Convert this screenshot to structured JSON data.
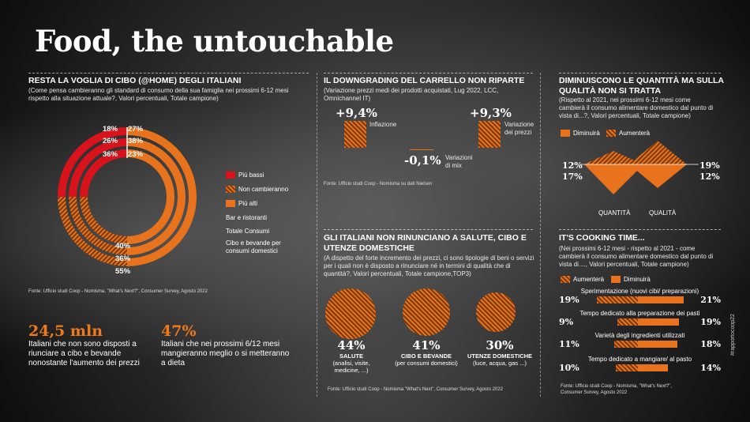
{
  "title": "Food, the untouchable",
  "panel1": {
    "heading": "RESTA LA VOGLIA DI CIBO (@HOME) DEGLI ITALIANI",
    "subtitle": "(Come pensa cambieranno gli standard di consumo della sua famiglia nei prossimi 6-12 mesi rispetto alla situazione attuale?, Valori percentuali, Totale campione)",
    "rings": [
      {
        "name": "Bar e ristoranti",
        "bassi": "18%",
        "alti": "27%"
      },
      {
        "name": "Totale Consumi",
        "bassi": "26%",
        "alti": "38%"
      },
      {
        "name": "Cibo e bevande per consumi domestici",
        "bassi": "36%",
        "alti": "23%"
      }
    ],
    "inner_labels": [
      "40%",
      "36%",
      "55%"
    ],
    "legend": [
      "Più bassi",
      "Non cambieranno",
      "Più alti"
    ],
    "ring_names": [
      "Bar e ristoranti",
      "Totale Consumi",
      "Cibo e bevande per consumi domestici"
    ],
    "source": "Fonte: Ufficio studi Coop - Nomisma, \"What's Next?\", Consumer Survey, Agosto 2022"
  },
  "stats": [
    {
      "value": "24,5 mln",
      "text": "Italiani che non sono disposti a riunciare a cibo e bevande nonostante l'aumento dei prezzi"
    },
    {
      "value": "47%",
      "text": "Italiani che nei prossimi 6/12 mesi mangieranno meglio o si metteranno a dieta"
    }
  ],
  "panel2": {
    "heading": "IL DOWNGRADING DEL CARRELLO NON RIPARTE",
    "subtitle": "(Variazione prezzi medi dei prodotti acquistati, Lug 2022, LCC, Omnichannel IT)",
    "items": [
      {
        "value": "+9,4%",
        "label": "Inflazione"
      },
      {
        "value": "-0,1%",
        "label": "Variazioni di mix"
      },
      {
        "value": "+9,3%",
        "label": "Variazione dei prezzi"
      }
    ],
    "source": "Fonte: Ufficio studi Coop - Nomisma su dati Nielsen"
  },
  "panel3": {
    "heading": "DIMINUISCONO LE QUANTITÀ MA SULLA QUALITÀ NON SI TRATTA",
    "subtitle": "(Rispetto al 2021, nei prossimi 6-12 mesi come cambierà il consumo alimentare domestico dal punto di vista di...?, Valori percentuali, Totale campione)",
    "legend": [
      "Diminuirà",
      "Aumenterà"
    ],
    "quantita": {
      "label": "QUANTITÀ",
      "aumentera": "12%",
      "diminuira": "17%"
    },
    "qualita": {
      "label": "QUALITÀ",
      "aumentera": "19%",
      "diminuira": "12%"
    }
  },
  "panel4": {
    "heading": "GLI ITALIANI NON RINUNCIANO A SALUTE, CIBO E UTENZE DOMESTICHE",
    "subtitle": "(A dispetto del forte incremento dei prezzi, ci sono tipologie di beni o servizi per i quali non  è disposto a rinunciare né in termini di qualità che di quantità?,  Valori percentuali, Totale campione,TOP3)",
    "items": [
      {
        "value": "44%",
        "title": "SALUTE",
        "detail": "(analisi, visite, medicine, ...)"
      },
      {
        "value": "41%",
        "title": "CIBO E BEVANDE",
        "detail": "(per consumi domestici)"
      },
      {
        "value": "30%",
        "title": "UTENZE DOMESTICHE",
        "detail": "(luce, acqua, gas ...)"
      }
    ],
    "source": "Fonte: Ufficio studi Coop - Nomisma \"What's Next\", Consumer Survey, Agosto 2022"
  },
  "panel5": {
    "heading": "IT'S COOKING TIME...",
    "subtitle": "(Nei prossimi 6-12 mesi - rispetto al 2021 - come cambierà il consumo alimentare domestico dal punto di vista di...., Valori percentuali, Totale campione)",
    "legend": [
      "Aumenterà",
      "Diminuirà"
    ],
    "rows": [
      {
        "label": "Sperimentazione (nuovi cibi/ preparazioni)",
        "left": "19%",
        "right": "21%"
      },
      {
        "label": "Tempo dedicato alla preparazione dei pasti",
        "left": "9%",
        "right": "19%"
      },
      {
        "label": "Varietà degli ingredienti utilizzati",
        "left": "11%",
        "right": "18%"
      },
      {
        "label": "Tempo dedicato a mangiare/ al pasto",
        "left": "10%",
        "right": "14%"
      }
    ],
    "source": "Fonte: Ufficio studi Coop - Nomisma, \"What's Next?\", Consumer Survey, Agosto 2022"
  },
  "side": "#rapportocoop22"
}
